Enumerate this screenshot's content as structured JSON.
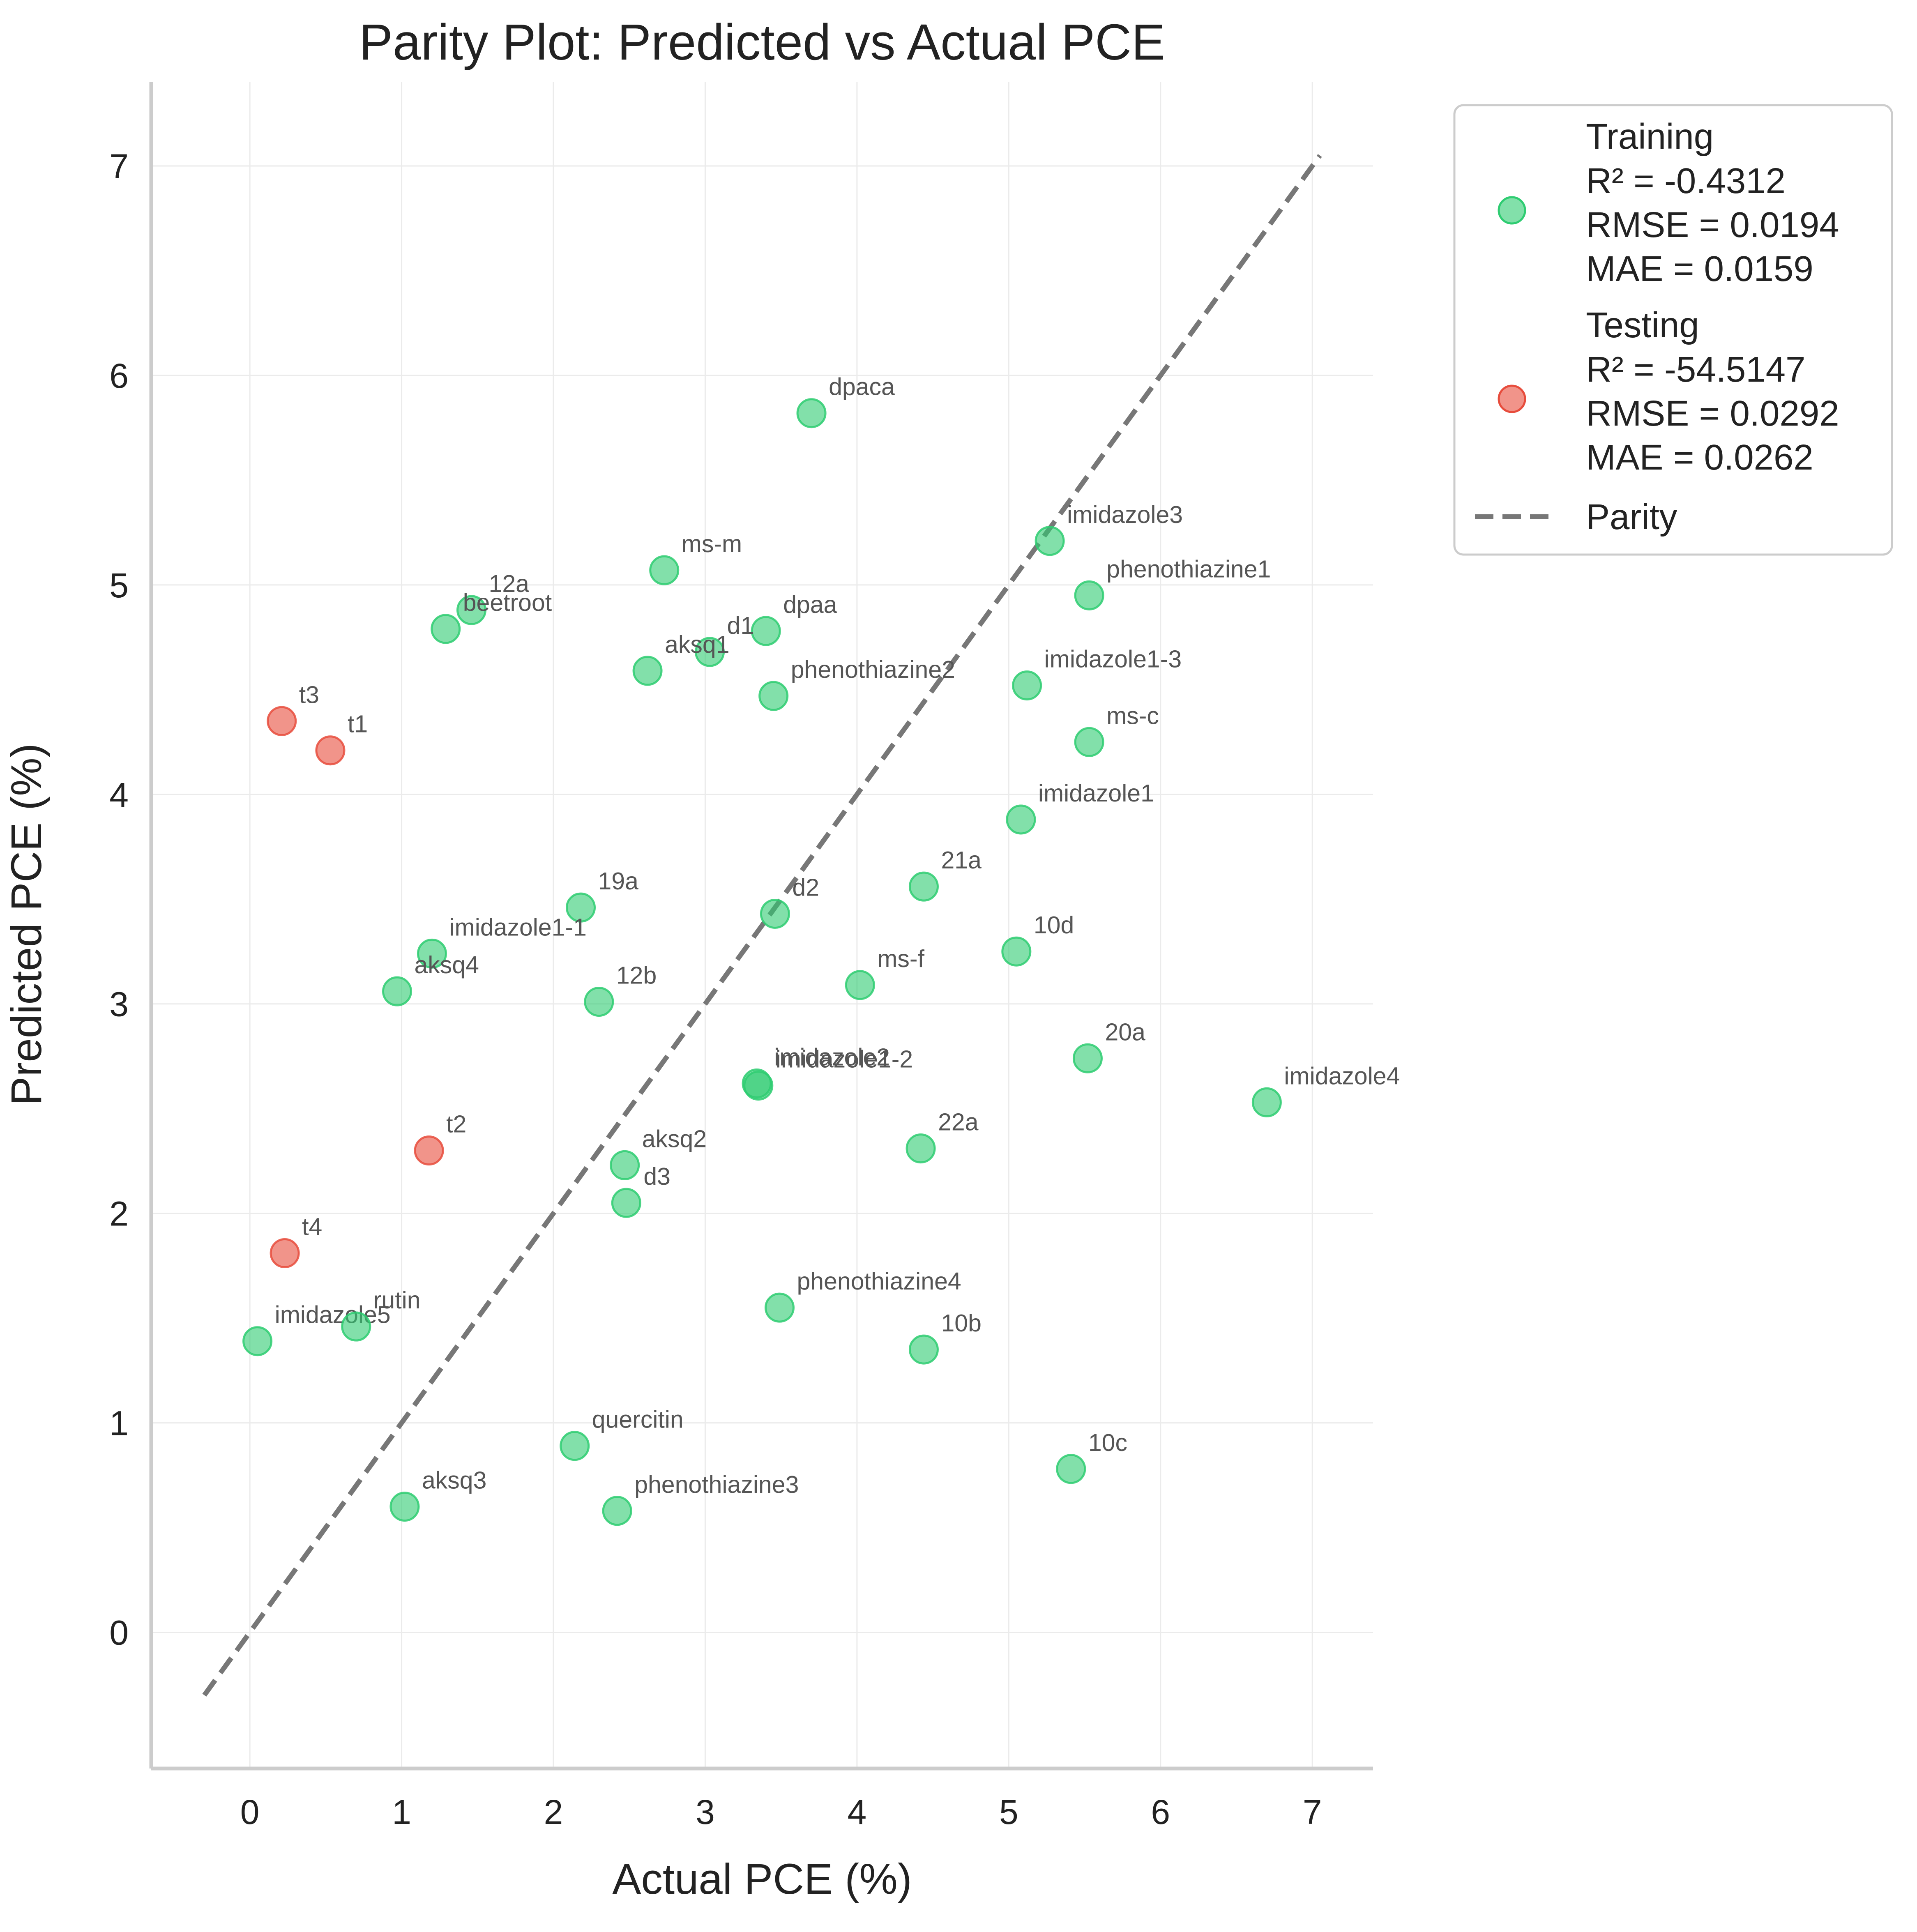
{
  "chart_data": {
    "type": "scatter",
    "title": "Parity Plot: Predicted vs Actual PCE",
    "xlabel": "Actual PCE (%)",
    "ylabel": "Predicted PCE (%)",
    "xlim": [
      -0.65,
      7.4
    ],
    "ylim": [
      -0.65,
      7.4
    ],
    "xticks": [
      0,
      1,
      2,
      3,
      4,
      5,
      6,
      7
    ],
    "yticks": [
      0,
      1,
      2,
      3,
      4,
      5,
      6,
      7
    ],
    "grid": true,
    "legend_position": "outside-right",
    "parity_line": {
      "name": "Parity",
      "x": [
        -0.3,
        7.05
      ],
      "y": [
        -0.3,
        7.05
      ],
      "color": "#777777"
    },
    "series": [
      {
        "name": "Training",
        "stats": [
          "Training",
          "R² = -0.4312",
          "RMSE = 0.0194",
          "MAE = 0.0159"
        ],
        "color": "#2ecc71",
        "points": [
          {
            "label": "dpaca",
            "x": 3.7,
            "y": 5.82
          },
          {
            "label": "imidazole3",
            "x": 5.27,
            "y": 5.21
          },
          {
            "label": "ms-m",
            "x": 2.73,
            "y": 5.07
          },
          {
            "label": "phenothiazine1",
            "x": 5.53,
            "y": 4.95
          },
          {
            "label": "12a",
            "x": 1.46,
            "y": 4.88
          },
          {
            "label": "beetroot",
            "x": 1.29,
            "y": 4.79
          },
          {
            "label": "dpaa",
            "x": 3.4,
            "y": 4.78
          },
          {
            "label": "d1",
            "x": 3.03,
            "y": 4.68
          },
          {
            "label": "aksq1",
            "x": 2.62,
            "y": 4.59
          },
          {
            "label": "imidazole1-3",
            "x": 5.12,
            "y": 4.52
          },
          {
            "label": "phenothiazine2",
            "x": 3.45,
            "y": 4.47
          },
          {
            "label": "ms-c",
            "x": 5.53,
            "y": 4.25
          },
          {
            "label": "imidazole1",
            "x": 5.08,
            "y": 3.88
          },
          {
            "label": "21a",
            "x": 4.44,
            "y": 3.56
          },
          {
            "label": "19a",
            "x": 2.18,
            "y": 3.46
          },
          {
            "label": "d2",
            "x": 3.46,
            "y": 3.43
          },
          {
            "label": "10d",
            "x": 5.05,
            "y": 3.25
          },
          {
            "label": "imidazole1-1",
            "x": 1.2,
            "y": 3.24
          },
          {
            "label": "ms-f",
            "x": 4.02,
            "y": 3.09
          },
          {
            "label": "aksq4",
            "x": 0.97,
            "y": 3.06
          },
          {
            "label": "12b",
            "x": 2.3,
            "y": 3.01
          },
          {
            "label": "20a",
            "x": 5.52,
            "y": 2.74
          },
          {
            "label": "imidazole2",
            "x": 3.34,
            "y": 2.62
          },
          {
            "label": "imidazole1-2",
            "x": 3.35,
            "y": 2.61
          },
          {
            "label": "imidazole4",
            "x": 6.7,
            "y": 2.53
          },
          {
            "label": "22a",
            "x": 4.42,
            "y": 2.31
          },
          {
            "label": "aksq2",
            "x": 2.47,
            "y": 2.23
          },
          {
            "label": "d3",
            "x": 2.48,
            "y": 2.05
          },
          {
            "label": "phenothiazine4",
            "x": 3.49,
            "y": 1.55
          },
          {
            "label": "imidazole5",
            "x": 0.05,
            "y": 1.39
          },
          {
            "label": "rutin",
            "x": 0.7,
            "y": 1.46
          },
          {
            "label": "10b",
            "x": 4.44,
            "y": 1.35
          },
          {
            "label": "quercitin",
            "x": 2.14,
            "y": 0.89
          },
          {
            "label": "10c",
            "x": 5.41,
            "y": 0.78
          },
          {
            "label": "aksq3",
            "x": 1.02,
            "y": 0.6
          },
          {
            "label": "phenothiazine3",
            "x": 2.42,
            "y": 0.58
          }
        ]
      },
      {
        "name": "Testing",
        "stats": [
          "Testing",
          "R² = -54.5147",
          "RMSE = 0.0292",
          "MAE = 0.0262"
        ],
        "color": "#e74c3c",
        "points": [
          {
            "label": "t3",
            "x": 0.21,
            "y": 4.35
          },
          {
            "label": "t1",
            "x": 0.53,
            "y": 4.21
          },
          {
            "label": "t2",
            "x": 1.18,
            "y": 2.3
          },
          {
            "label": "t4",
            "x": 0.23,
            "y": 1.81
          }
        ]
      }
    ]
  }
}
